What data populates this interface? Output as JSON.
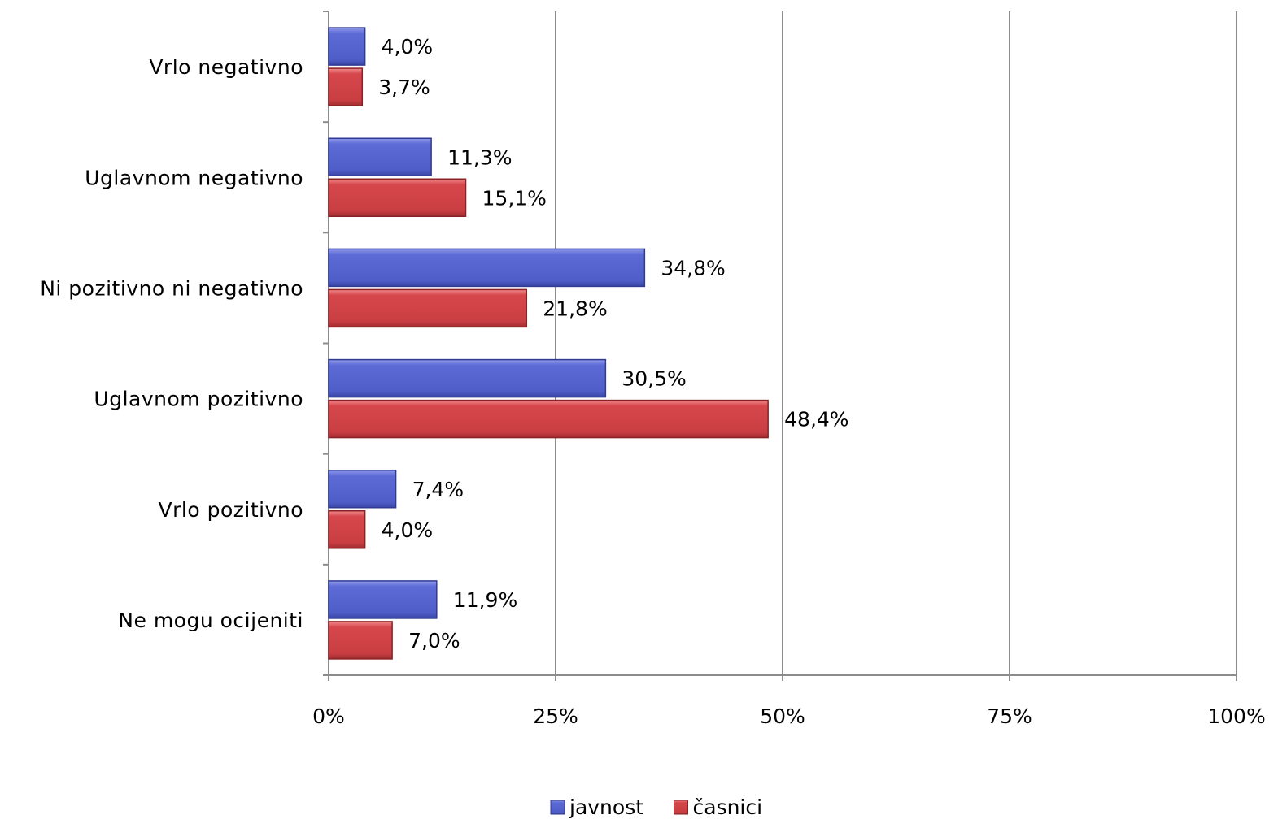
{
  "chart_data": {
    "type": "bar",
    "orientation": "horizontal",
    "categories": [
      "Vrlo negativno",
      "Uglavnom  negativno",
      "Ni pozitivno  ni  negativno",
      "Uglavnom  pozitivno",
      "Vrlo pozitivno",
      "Ne mogu ocijeniti"
    ],
    "series": [
      {
        "name": "javnost",
        "color": "#5563cf",
        "values": [
          4.0,
          11.3,
          34.8,
          30.5,
          7.4,
          11.9
        ],
        "labels": [
          "4,0%",
          "11,3%",
          "34,8%",
          "30,5%",
          "7,4%",
          "11,9%"
        ]
      },
      {
        "name": "časnici",
        "color": "#d04448",
        "values": [
          3.7,
          15.1,
          21.8,
          48.4,
          4.0,
          7.0
        ],
        "labels": [
          "3,7%",
          "15,1%",
          "21,8%",
          "48,4%",
          "4,0%",
          "7,0%"
        ]
      }
    ],
    "xlim": [
      0,
      100
    ],
    "xticks": [
      0,
      25,
      50,
      75,
      100
    ],
    "xtick_labels": [
      "0%",
      "25%",
      "50%",
      "75%",
      "100%"
    ],
    "grid": true,
    "legend_position": "bottom-center"
  }
}
